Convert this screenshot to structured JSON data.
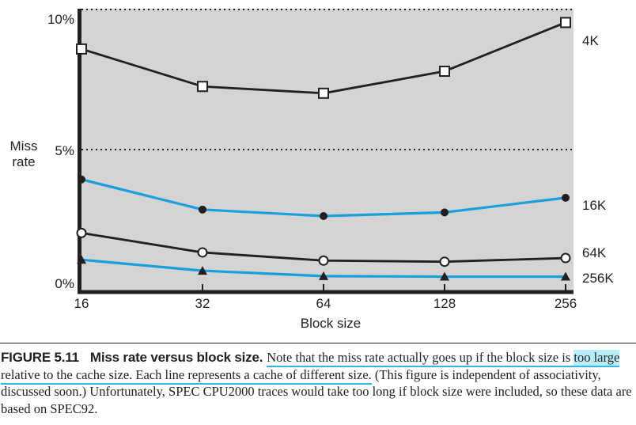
{
  "figure": {
    "id": "FIGURE 5.11",
    "title": "Miss rate versus block size.",
    "caption_underlined_1": "Note that the miss rate actually goes up if the block size is ",
    "caption_highlight": "too large",
    "caption_underlined_2": " relative to the cache size. Each line represents a cache of different size.",
    "caption_rest": " (This figure is independent of associativity, discussed soon.) Unfortunately, SPEC CPU2000 traces would take too long if block size were included, so these data are based on SPEC92."
  },
  "chart_data": {
    "type": "line",
    "title": "",
    "xlabel": "Block size",
    "ylabel": "Miss rate",
    "categories": [
      "16",
      "32",
      "64",
      "128",
      "256"
    ],
    "y_ticks": [
      {
        "label": "10%",
        "value": 10
      },
      {
        "label": "5%",
        "value": 5
      },
      {
        "label": "0%",
        "value": 0
      }
    ],
    "ylim": [
      0,
      10
    ],
    "grid": {
      "style": "dotted",
      "values": [
        10,
        5
      ]
    },
    "plot_background": "#d4d4d4",
    "axis_color": "#231f20",
    "accent_blue": "#199fdd",
    "legend_position": "right-of-line-ends",
    "series": [
      {
        "name": "4K",
        "color": "#231f20",
        "marker": "open-square",
        "values": [
          8.57,
          7.24,
          7.0,
          7.78,
          9.51
        ]
      },
      {
        "name": "16K",
        "color": "#199fdd",
        "marker": "filled-circle",
        "values": [
          3.94,
          2.87,
          2.64,
          2.77,
          3.29
        ]
      },
      {
        "name": "64K",
        "color": "#231f20",
        "marker": "open-circle",
        "values": [
          2.04,
          1.35,
          1.06,
          1.02,
          1.15
        ]
      },
      {
        "name": "256K",
        "color": "#199fdd",
        "marker": "filled-triangle",
        "values": [
          1.09,
          0.7,
          0.51,
          0.49,
          0.49
        ]
      }
    ]
  }
}
